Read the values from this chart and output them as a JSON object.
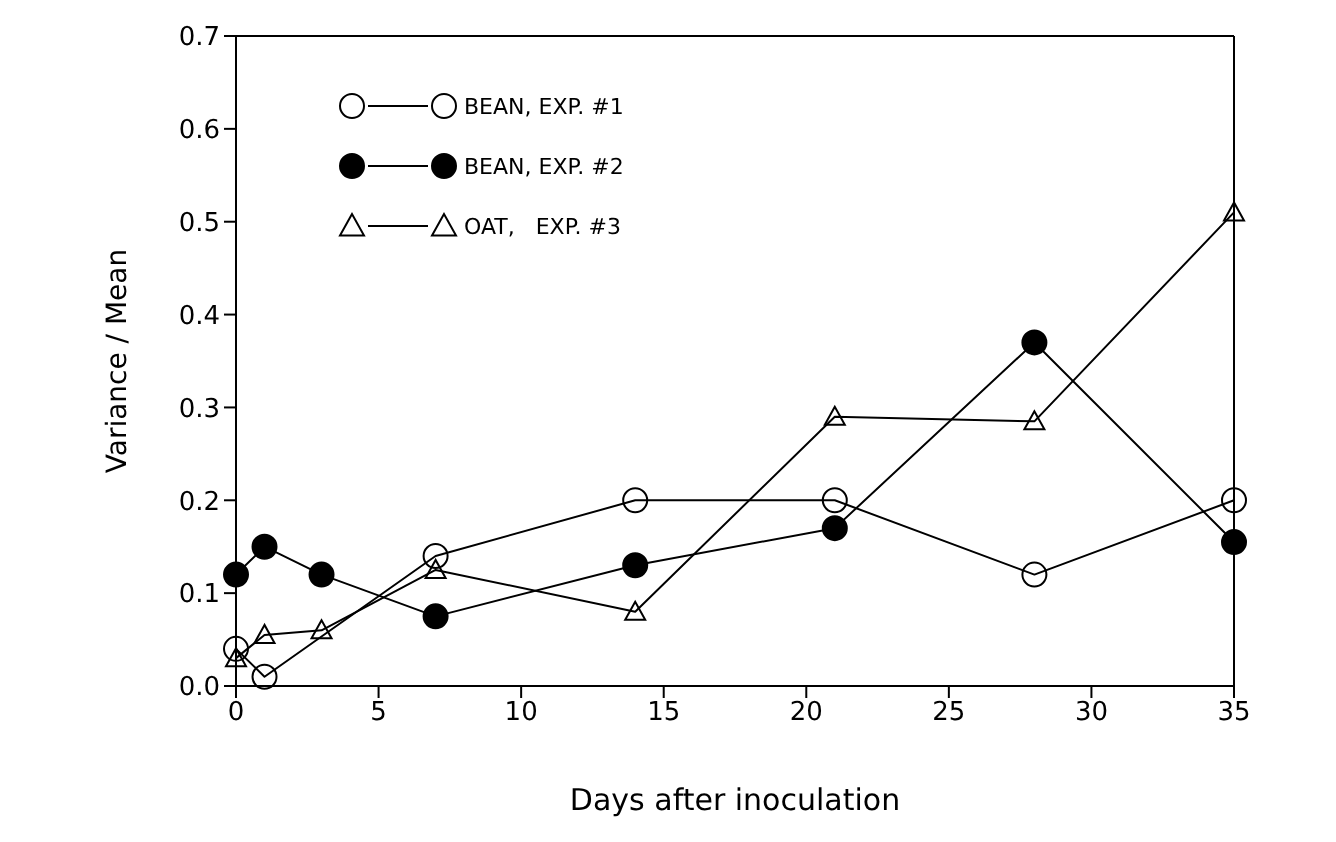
{
  "chart_data": {
    "type": "line",
    "xlabel": "Days after inoculation",
    "ylabel": "Variance / Mean",
    "xlim": [
      0,
      35
    ],
    "xticks": [
      0,
      5,
      10,
      15,
      20,
      25,
      30,
      35
    ],
    "ylim": [
      0,
      0.7
    ],
    "yticks": [
      {
        "value": 0,
        "label": "0.0"
      },
      {
        "value": 0.1,
        "label": "0.1"
      },
      {
        "value": 0.2,
        "label": "0.2"
      },
      {
        "value": 0.3,
        "label": "0.3"
      },
      {
        "value": 0.4,
        "label": "0.4"
      },
      {
        "value": 0.5,
        "label": "0.5"
      },
      {
        "value": 0.6,
        "label": "0.6"
      },
      {
        "value": 0.7,
        "label": "0.7"
      }
    ],
    "legend": "top left",
    "line_style": "solid",
    "series": [
      {
        "name": "BEAN, EXP. #1",
        "color": "#000000",
        "marker": "circle",
        "x": [
          0,
          1,
          7,
          14,
          21,
          28,
          35
        ],
        "values": [
          0.04,
          0.01,
          0.14,
          0.2,
          0.2,
          0.12,
          0.2
        ]
      },
      {
        "name": "BEAN, EXP. #2",
        "color": "#000000",
        "marker": "circle",
        "x": [
          0,
          1,
          3,
          7,
          14,
          21,
          28,
          35
        ],
        "values": [
          0.12,
          0.15,
          0.12,
          0.075,
          0.13,
          0.17,
          0.37,
          0.155
        ]
      },
      {
        "name": "OAT,   EXP. #3",
        "color": "#000000",
        "marker": "triangle",
        "x": [
          0,
          1,
          3,
          7,
          14,
          21,
          28,
          35
        ],
        "values": [
          0.03,
          0.055,
          0.06,
          0.125,
          0.08,
          0.29,
          0.285,
          0.51
        ]
      }
    ]
  }
}
